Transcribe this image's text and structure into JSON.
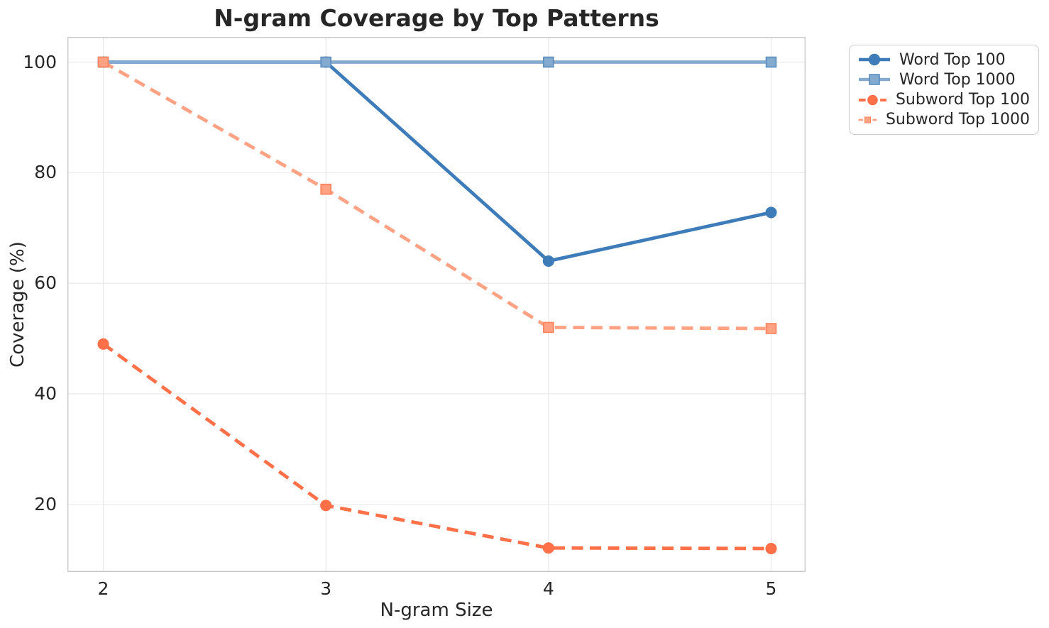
{
  "title": "N-gram Coverage by Top Patterns",
  "chart_data": {
    "type": "line",
    "title": "N-gram Coverage by Top Patterns",
    "xlabel": "N-gram Size",
    "ylabel": "Coverage (%)",
    "x": [
      2,
      3,
      4,
      5
    ],
    "xticks": [
      "2",
      "3",
      "4",
      "5"
    ],
    "yticks": [
      "100",
      "80",
      "60",
      "40",
      "20"
    ],
    "xlim": [
      1.84,
      5.15
    ],
    "ylim": [
      7.8,
      104.5
    ],
    "grid": true,
    "legend_position": "upper right, outside axes",
    "colors": {
      "text": "#262626",
      "grid": "#e9e9e9",
      "spine": "#c8c8c8",
      "background": "#ffffff"
    },
    "series": [
      {
        "name": "Word Top 100",
        "marker": "circle",
        "line": "solid",
        "color": "#3d7cb8",
        "edge": "#3d7cb8",
        "values": [
          100,
          100,
          64,
          72.8
        ]
      },
      {
        "name": "Word Top 1000",
        "marker": "square",
        "line": "solid",
        "color": "#85aad0",
        "edge": "#5f90c0",
        "values": [
          100,
          100,
          100,
          100
        ]
      },
      {
        "name": "Subword Top 100",
        "marker": "circle",
        "line": "dashed",
        "color": "#ff7048",
        "edge": "#ff7048",
        "values": [
          49,
          19.8,
          12.1,
          12
        ]
      },
      {
        "name": "Subword Top 1000",
        "marker": "square",
        "line": "dashed",
        "color": "#ffa283",
        "edge": "#fb855f",
        "values": [
          100,
          77,
          52,
          51.8
        ]
      }
    ]
  }
}
